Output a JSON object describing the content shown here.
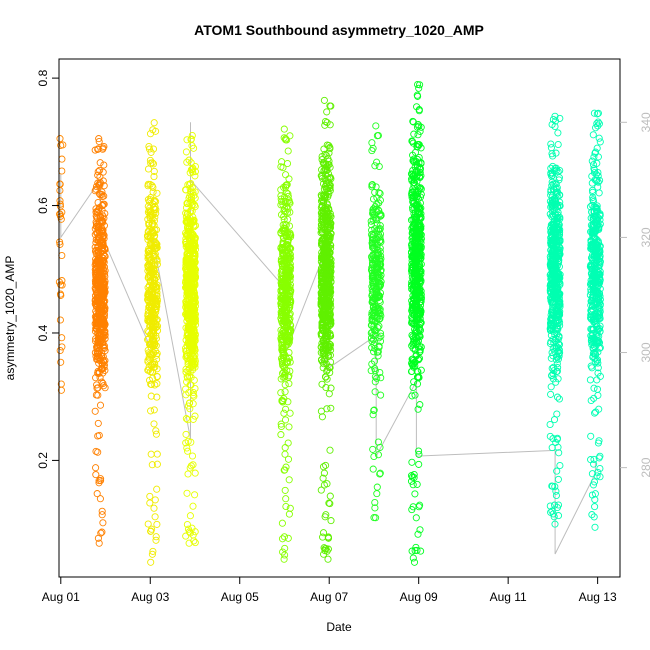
{
  "chart_data": {
    "type": "scatter",
    "title": "ATOM1 Southbound asymmetry_1020_AMP",
    "xlabel": "Date",
    "ylabel": "asymmetry_1020_AMP",
    "x_ticks": [
      "Aug 01",
      "Aug 03",
      "Aug 05",
      "Aug 07",
      "Aug 09",
      "Aug 11",
      "Aug 13"
    ],
    "y_ticks": [
      0.2,
      0.4,
      0.6,
      0.8
    ],
    "y2_ticks": [
      280,
      300,
      320,
      340
    ],
    "xlim_days": [
      0.96,
      13.5
    ],
    "ylim": [
      0.017,
      0.83
    ],
    "y2lim": [
      261,
      351
    ],
    "colors": {
      "grey_line": "#bdbdbd",
      "right_axis": "#bdbdbd"
    },
    "clusters": [
      {
        "day": 1.0,
        "y_min": 0.31,
        "y_max": 0.705,
        "color": "#ff8800",
        "n": 28,
        "dense": false
      },
      {
        "day": 1.88,
        "y_min": 0.07,
        "y_max": 0.705,
        "color": "#ff8000",
        "n": 520,
        "dense": true
      },
      {
        "day": 3.05,
        "y_min": 0.04,
        "y_max": 0.73,
        "color": "#f0ec00",
        "n": 380,
        "dense": true
      },
      {
        "day": 3.9,
        "y_min": 0.07,
        "y_max": 0.71,
        "color": "#e6ff00",
        "n": 620,
        "dense": true
      },
      {
        "day": 6.03,
        "y_min": 0.045,
        "y_max": 0.72,
        "color": "#88ff00",
        "n": 450,
        "dense": true
      },
      {
        "day": 6.93,
        "y_min": 0.045,
        "y_max": 0.765,
        "color": "#60f000",
        "n": 620,
        "dense": true
      },
      {
        "day": 8.05,
        "y_min": 0.11,
        "y_max": 0.725,
        "color": "#22ff22",
        "n": 280,
        "dense": true
      },
      {
        "day": 8.95,
        "y_min": 0.04,
        "y_max": 0.79,
        "color": "#00ff20",
        "n": 560,
        "dense": true
      },
      {
        "day": 12.05,
        "y_min": 0.1,
        "y_max": 0.74,
        "color": "#00ffb0",
        "n": 540,
        "dense": true
      },
      {
        "day": 12.95,
        "y_min": 0.095,
        "y_max": 0.745,
        "color": "#00ffb4",
        "n": 430,
        "dense": true
      }
    ],
    "grey_line_y2": [
      [
        1.0,
        331
      ],
      [
        1.0,
        320
      ],
      [
        1.88,
        330
      ],
      [
        1.88,
        321
      ],
      [
        3.05,
        300
      ],
      [
        3.05,
        310
      ],
      [
        3.05,
        320
      ],
      [
        3.9,
        285
      ],
      [
        3.9,
        340
      ],
      [
        3.9,
        330
      ],
      [
        6.03,
        311
      ],
      [
        6.03,
        300
      ],
      [
        6.93,
        318
      ],
      [
        6.93,
        305
      ],
      [
        6.93,
        297
      ],
      [
        8.05,
        303
      ],
      [
        8.05,
        290
      ],
      [
        8.05,
        282
      ],
      [
        8.95,
        295
      ],
      [
        8.95,
        282
      ],
      [
        12.05,
        283
      ],
      [
        12.05,
        265
      ],
      [
        12.95,
        279
      ],
      [
        12.95,
        281
      ]
    ]
  }
}
